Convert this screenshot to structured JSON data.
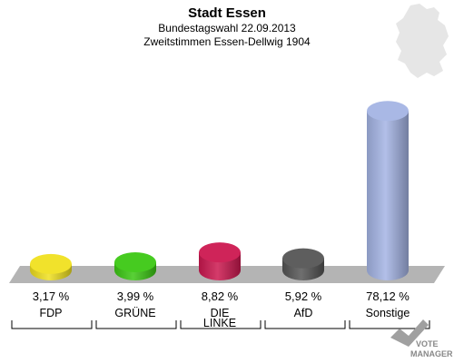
{
  "title": "Stadt Essen",
  "subtitle_1": "Bundestagswahl 22.09.2013",
  "subtitle_2": "Zweitstimmen Essen-Dellwig 1904",
  "logo": {
    "line1": "VOTE",
    "line2": "MANAGER"
  },
  "chart_data": {
    "type": "bar",
    "title": "Stadt Essen",
    "subtitle": "Bundestagswahl 22.09.2013 / Zweitstimmen Essen-Dellwig 1904",
    "ylim": [
      0,
      100
    ],
    "grid": false,
    "categories": [
      {
        "label": "FDP",
        "value": 3.17,
        "value_label": "3,17 %",
        "color": "#f0e020"
      },
      {
        "label": "GRÜNE",
        "value": 3.99,
        "value_label": "3,99 %",
        "color": "#3cc814"
      },
      {
        "label": "DIE LINKE",
        "value": 8.82,
        "value_label": "8,82 %",
        "color": "#cc1850"
      },
      {
        "label": "AfD",
        "value": 5.92,
        "value_label": "5,92 %",
        "color": "#555555"
      },
      {
        "label": "Sonstige",
        "value": 78.12,
        "value_label": "78,12 %",
        "color": "#a4b4e4"
      }
    ]
  }
}
